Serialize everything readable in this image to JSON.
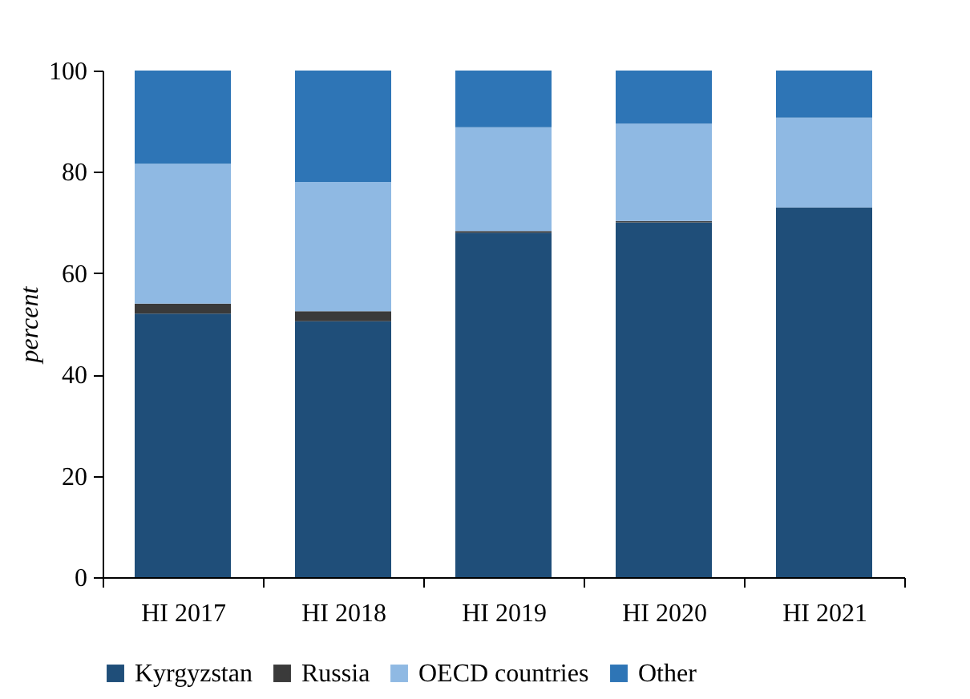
{
  "chart_data": {
    "type": "bar",
    "stacked": true,
    "ylabel": "percent",
    "categories": [
      "HI 2017",
      "HI 2018",
      "HI 2019",
      "HI 2020",
      "HI 2021"
    ],
    "series": [
      {
        "name": "Kyrgyzstan",
        "color": "#1f4e79",
        "values": [
          52,
          50.5,
          68,
          70,
          73
        ]
      },
      {
        "name": "Russia",
        "color": "#3a3a3a",
        "values": [
          2,
          2,
          0.3,
          0.3,
          0
        ]
      },
      {
        "name": "OECD countries",
        "color": "#8fb9e3",
        "values": [
          27.6,
          25.5,
          20.5,
          19.2,
          17.7
        ]
      },
      {
        "name": "Other",
        "color": "#2e75b6",
        "values": [
          18.4,
          22,
          11.2,
          10.5,
          9.3
        ]
      }
    ],
    "ylim": [
      0,
      100
    ],
    "yticks": [
      0,
      20,
      40,
      60,
      80,
      100
    ],
    "legend": "bottom"
  }
}
